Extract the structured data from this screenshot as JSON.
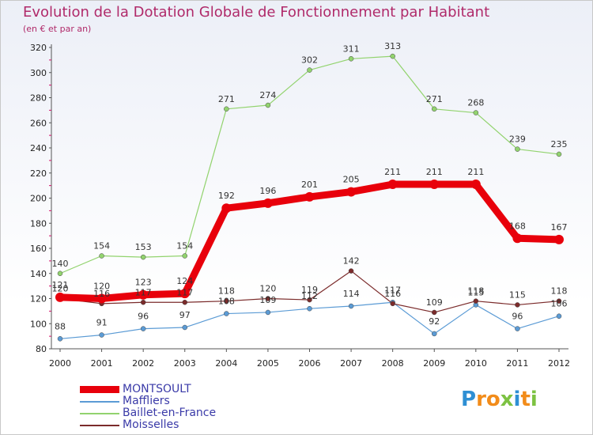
{
  "title": "Evolution de la Dotation Globale de Fonctionnement par Habitant",
  "subtitle": "(en € et par an)",
  "logo": {
    "text": "Proxiti",
    "letters": [
      "P",
      "r",
      "o",
      "x",
      "i",
      "t",
      "i"
    ],
    "colors": [
      "#2e8fd4",
      "#f28c1a",
      "#f28c1a",
      "#7dc242",
      "#2e8fd4",
      "#f28c1a",
      "#7dc242"
    ]
  },
  "chart_data": {
    "type": "line",
    "title": "Evolution de la Dotation Globale de Fonctionnement par Habitant",
    "subtitle": "(en € et par an)",
    "xlabel": "",
    "ylabel": "",
    "x": [
      "2000",
      "2001",
      "2002",
      "2003",
      "2004",
      "2005",
      "2006",
      "2007",
      "2008",
      "2009",
      "2010",
      "2011",
      "2012"
    ],
    "ylim": [
      80,
      320
    ],
    "yticks": [
      80,
      100,
      120,
      140,
      160,
      180,
      200,
      220,
      240,
      260,
      280,
      300,
      320
    ],
    "grid": false,
    "legend": "bottom-left",
    "series": [
      {
        "name": "MONTSOULT",
        "color": "#e8000b",
        "width": 9,
        "marker": 6,
        "values": [
          121,
          120,
          123,
          124,
          192,
          196,
          201,
          205,
          211,
          211,
          211,
          168,
          167
        ],
        "labels": [
          "121",
          "120",
          "123",
          "124",
          "192",
          "196",
          "201",
          "205",
          "211",
          "211",
          "211",
          "168",
          "167"
        ]
      },
      {
        "name": "Maffliers",
        "color": "#5b9bd5",
        "width": 1.2,
        "marker": 3,
        "values": [
          88,
          91,
          96,
          97,
          108,
          109,
          112,
          114,
          117,
          92,
          115,
          96,
          106
        ],
        "labels": [
          "88",
          "91",
          "96",
          "97",
          "108",
          "109",
          "112",
          "114",
          "117",
          "92",
          "115",
          "96",
          "106"
        ]
      },
      {
        "name": "Baillet-en-France",
        "color": "#92d36e",
        "width": 1.2,
        "marker": 3,
        "values": [
          140,
          154,
          153,
          154,
          271,
          274,
          302,
          311,
          313,
          271,
          268,
          239,
          235
        ],
        "labels": [
          "140",
          "154",
          "153",
          "154",
          "271",
          "274",
          "302",
          "311",
          "313",
          "271",
          "268",
          "239",
          "235"
        ]
      },
      {
        "name": "Moisselles",
        "color": "#7b2b2b",
        "width": 1.2,
        "marker": 3,
        "values": [
          120,
          116,
          117,
          117,
          118,
          120,
          119,
          142,
          116,
          109,
          118,
          115,
          118
        ],
        "labels": [
          "120",
          "116",
          "117",
          "117",
          "118",
          "120",
          "119",
          "142",
          "116",
          "109",
          "118",
          "115",
          "118"
        ]
      }
    ]
  }
}
